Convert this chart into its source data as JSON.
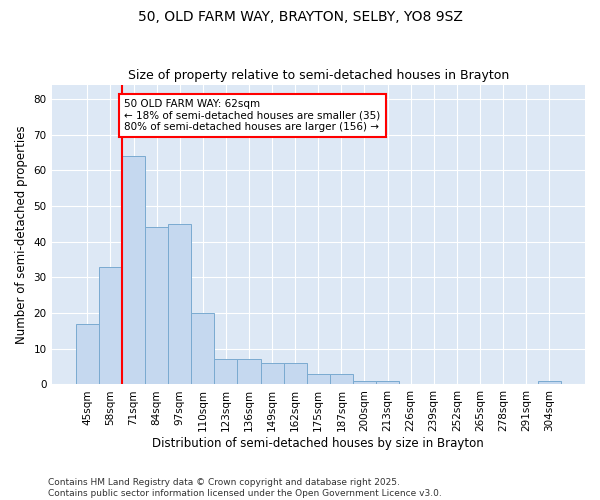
{
  "title": "50, OLD FARM WAY, BRAYTON, SELBY, YO8 9SZ",
  "subtitle": "Size of property relative to semi-detached houses in Brayton",
  "xlabel": "Distribution of semi-detached houses by size in Brayton",
  "ylabel": "Number of semi-detached properties",
  "categories": [
    "45sqm",
    "58sqm",
    "71sqm",
    "84sqm",
    "97sqm",
    "110sqm",
    "123sqm",
    "136sqm",
    "149sqm",
    "162sqm",
    "175sqm",
    "187sqm",
    "200sqm",
    "213sqm",
    "226sqm",
    "239sqm",
    "252sqm",
    "265sqm",
    "278sqm",
    "291sqm",
    "304sqm"
  ],
  "values": [
    17,
    33,
    64,
    44,
    45,
    20,
    7,
    7,
    6,
    6,
    3,
    3,
    1,
    1,
    0,
    0,
    0,
    0,
    0,
    0,
    1
  ],
  "bar_color": "#c5d8ef",
  "bar_edge_color": "#7aaad0",
  "vline_x": 1.5,
  "vline_color": "red",
  "annotation_title": "50 OLD FARM WAY: 62sqm",
  "annotation_line1": "← 18% of semi-detached houses are smaller (35)",
  "annotation_line2": "80% of semi-detached houses are larger (156) →",
  "annotation_box_color": "red",
  "footer_line1": "Contains HM Land Registry data © Crown copyright and database right 2025.",
  "footer_line2": "Contains public sector information licensed under the Open Government Licence v3.0.",
  "ylim": [
    0,
    84
  ],
  "yticks": [
    0,
    10,
    20,
    30,
    40,
    50,
    60,
    70,
    80
  ],
  "fig_background": "#ffffff",
  "plot_background": "#dde8f5",
  "title_fontsize": 10,
  "subtitle_fontsize": 9,
  "axis_label_fontsize": 8.5,
  "tick_fontsize": 7.5,
  "footer_fontsize": 6.5,
  "annotation_fontsize": 7.5
}
